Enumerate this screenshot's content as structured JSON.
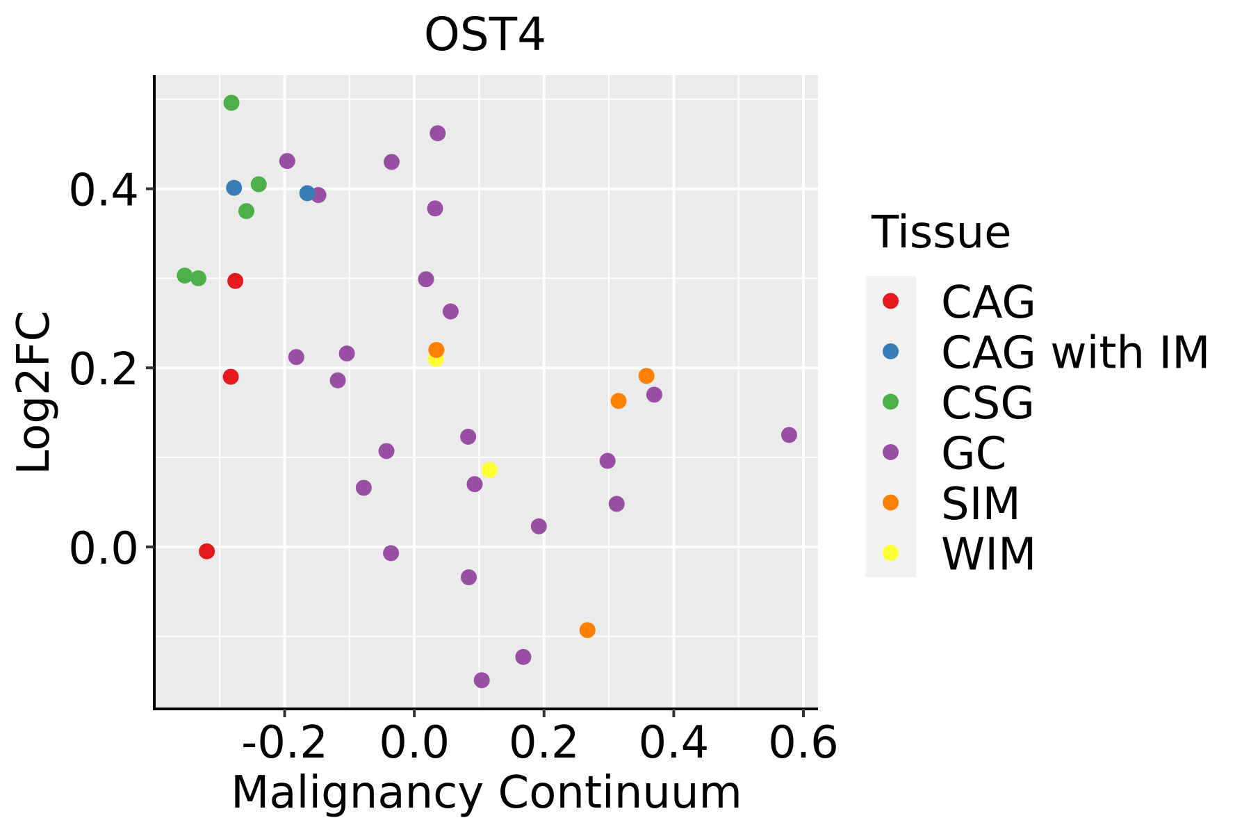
{
  "chart_data": {
    "type": "scatter",
    "title": "OST4",
    "xlabel": "Malignancy Continuum",
    "ylabel": "Log2FC",
    "xlim": [
      -0.401,
      0.6225
    ],
    "ylim": [
      -0.181,
      0.527
    ],
    "x_ticks": [
      -0.2,
      0.0,
      0.2,
      0.4,
      0.6
    ],
    "x_tick_labels": [
      "-0.2",
      "0.0",
      "0.2",
      "0.4",
      "0.6"
    ],
    "x_minor_ticks": [
      -0.3,
      -0.1,
      0.1,
      0.3,
      0.5
    ],
    "y_ticks": [
      0.0,
      0.2,
      0.4
    ],
    "y_tick_labels": [
      "0.0",
      "0.2",
      "0.4"
    ],
    "y_minor_ticks": [
      -0.1,
      0.1,
      0.3,
      0.5
    ],
    "grid": true,
    "panel_background": "#EBEBEB",
    "legend": {
      "title": "Tissue",
      "position": "right",
      "entries": [
        {
          "label": "CAG",
          "color": "#E41A1C"
        },
        {
          "label": "CAG with IM",
          "color": "#377EB8"
        },
        {
          "label": "CSG",
          "color": "#4DAF4A"
        },
        {
          "label": "GC",
          "color": "#984EA3"
        },
        {
          "label": "SIM",
          "color": "#FF7F00"
        },
        {
          "label": "WIM",
          "color": "#FFFF33"
        }
      ]
    },
    "series": [
      {
        "name": "GC",
        "color": "#984EA3",
        "points": [
          [
            -0.196,
            0.431
          ],
          [
            -0.148,
            0.393
          ],
          [
            -0.035,
            0.43
          ],
          [
            0.036,
            0.462
          ],
          [
            0.032,
            0.378
          ],
          [
            0.018,
            0.299
          ],
          [
            0.056,
            0.263
          ],
          [
            -0.182,
            0.212
          ],
          [
            -0.104,
            0.216
          ],
          [
            -0.118,
            0.186
          ],
          [
            -0.043,
            0.107
          ],
          [
            -0.078,
            0.066
          ],
          [
            -0.036,
            -0.007
          ],
          [
            0.083,
            0.123
          ],
          [
            0.093,
            0.07
          ],
          [
            0.192,
            0.023
          ],
          [
            0.084,
            -0.034
          ],
          [
            0.168,
            -0.123
          ],
          [
            0.104,
            -0.149
          ],
          [
            0.37,
            0.17
          ],
          [
            0.578,
            0.125
          ],
          [
            0.298,
            0.096
          ],
          [
            0.312,
            0.048
          ]
        ]
      },
      {
        "name": "CAG",
        "color": "#E41A1C",
        "points": [
          [
            -0.276,
            0.297
          ],
          [
            -0.283,
            0.19
          ],
          [
            -0.32,
            -0.005
          ]
        ]
      },
      {
        "name": "CAG with IM",
        "color": "#377EB8",
        "points": [
          [
            -0.278,
            0.401
          ],
          [
            -0.165,
            0.395
          ]
        ]
      },
      {
        "name": "CSG",
        "color": "#4DAF4A",
        "points": [
          [
            -0.282,
            0.496
          ],
          [
            -0.24,
            0.405
          ],
          [
            -0.259,
            0.375
          ],
          [
            -0.354,
            0.303
          ],
          [
            -0.333,
            0.3
          ]
        ]
      },
      {
        "name": "WIM",
        "color": "#FFFF33",
        "points": [
          [
            0.033,
            0.21
          ],
          [
            0.116,
            0.086
          ]
        ]
      },
      {
        "name": "SIM",
        "color": "#FF7F00",
        "points": [
          [
            0.034,
            0.22
          ],
          [
            0.358,
            0.191
          ],
          [
            0.315,
            0.163
          ],
          [
            0.267,
            -0.093
          ]
        ]
      }
    ]
  }
}
